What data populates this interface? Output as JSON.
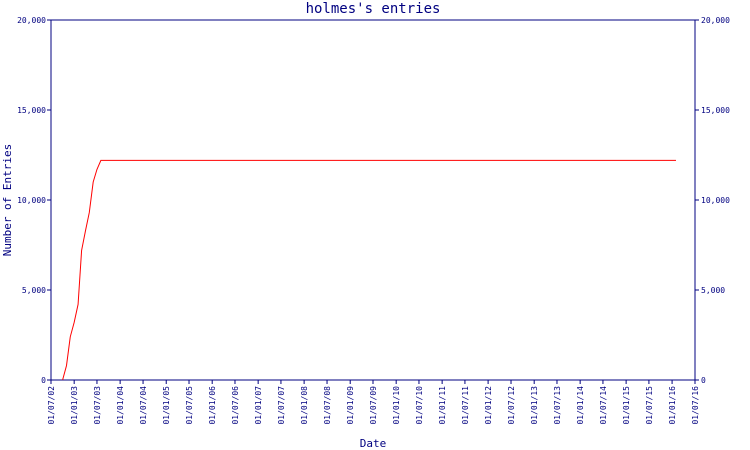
{
  "chart_data": {
    "type": "line",
    "title": "holmes's entries",
    "xlabel": "Date",
    "ylabel": "Number of Entries",
    "x": [
      "01/10/02",
      "01/11/02",
      "01/12/02",
      "01/01/03",
      "01/02/03",
      "01/03/03",
      "01/04/03",
      "01/05/03",
      "01/06/03",
      "01/07/03",
      "01/08/03",
      "01/02/16"
    ],
    "series": [
      {
        "name": "holmes",
        "color": "#ff0000",
        "values": [
          0,
          800,
          2400,
          3200,
          4200,
          7200,
          8300,
          9300,
          11000,
          11700,
          12200,
          12200
        ]
      }
    ],
    "xlim": [
      "01/07/02",
      "01/07/16"
    ],
    "xticks": [
      "01/07/02",
      "01/01/03",
      "01/07/03",
      "01/01/04",
      "01/07/04",
      "01/01/05",
      "01/07/05",
      "01/01/06",
      "01/07/06",
      "01/01/07",
      "01/07/07",
      "01/01/08",
      "01/07/08",
      "01/01/09",
      "01/07/09",
      "01/01/10",
      "01/07/10",
      "01/01/11",
      "01/07/11",
      "01/01/12",
      "01/07/12",
      "01/01/13",
      "01/07/13",
      "01/01/14",
      "01/07/14",
      "01/01/15",
      "01/07/15",
      "01/01/16",
      "01/07/16"
    ],
    "ylim": [
      0,
      20000
    ],
    "yticks": [
      0,
      {
        "value": 5000,
        "label": "5,000"
      },
      {
        "value": 10000,
        "label": "10,000"
      },
      {
        "value": 15000,
        "label": "15,000"
      },
      {
        "value": 20000,
        "label": "20,000"
      }
    ],
    "axis_color": "#000080"
  }
}
